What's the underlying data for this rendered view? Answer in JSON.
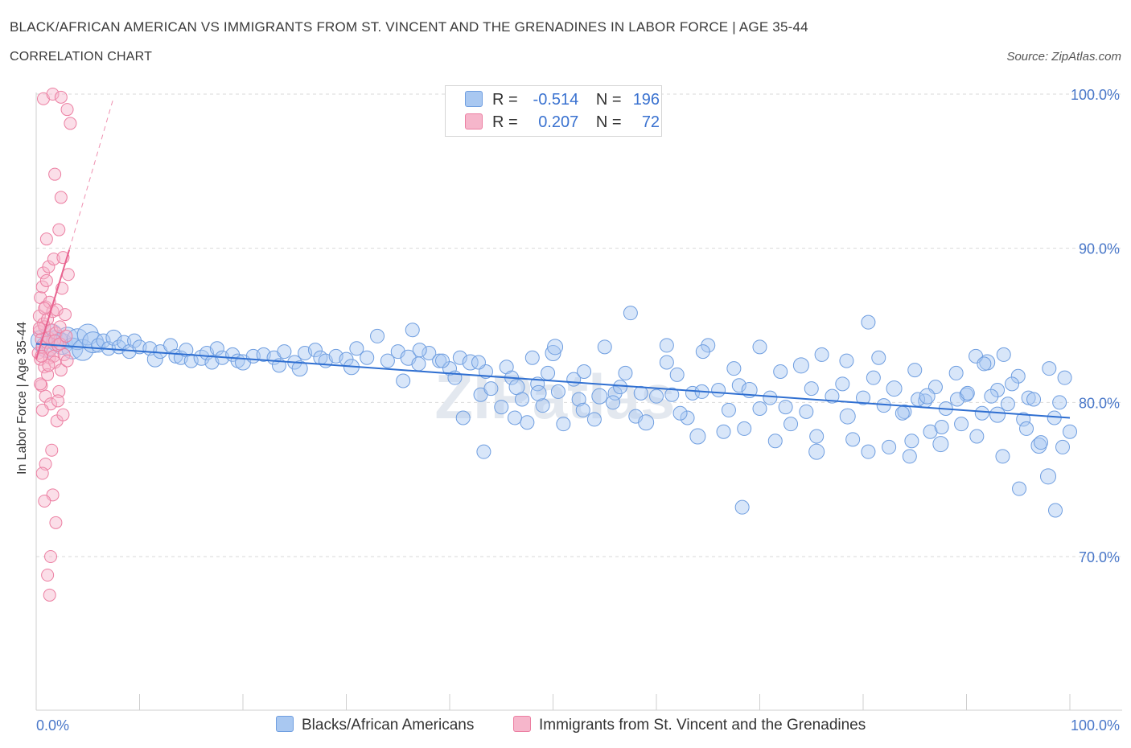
{
  "header": {
    "title": "BLACK/AFRICAN AMERICAN VS IMMIGRANTS FROM ST. VINCENT AND THE GRENADINES IN LABOR FORCE | AGE 35-44",
    "subtitle": "CORRELATION CHART",
    "source": "Source: ZipAtlas.com"
  },
  "legend": {
    "series1": {
      "r_label": "R =",
      "r_value": "-0.514",
      "n_label": "N =",
      "n_value": "196"
    },
    "series2": {
      "r_label": "R =",
      "r_value": "0.207",
      "n_label": "N =",
      "n_value": "72"
    }
  },
  "colors": {
    "blue_fill": "#a9c8f1",
    "blue_stroke": "#6f9ee0",
    "blue_line": "#2f6fd1",
    "pink_fill": "#f6b6cb",
    "pink_stroke": "#ec7fa2",
    "pink_line": "#e8628f",
    "tick_text": "#4a78c9",
    "grid": "#d9d9d9"
  },
  "chart_data": {
    "type": "scatter",
    "title": "BLACK/AFRICAN AMERICAN VS IMMIGRANTS FROM ST. VINCENT AND THE GRENADINES IN LABOR FORCE | AGE 35-44",
    "xlabel": "",
    "ylabel": "In Labor Force | Age 35-44",
    "xlim": [
      0,
      100
    ],
    "ylim": [
      60,
      100
    ],
    "x_tick_labels": [
      "0.0%",
      "100.0%"
    ],
    "y_ticks": [
      70,
      80,
      90,
      100
    ],
    "y_tick_labels": [
      "70.0%",
      "80.0%",
      "90.0%",
      "100.0%"
    ],
    "watermark": "ZIPatlas",
    "series": [
      {
        "name": "Blacks/African Americans",
        "r": -0.514,
        "n": 196,
        "trend": {
          "x": [
            0,
            100
          ],
          "y": [
            83.8,
            79.0
          ]
        },
        "points": [
          [
            0.5,
            84.0
          ],
          [
            1.0,
            83.6
          ],
          [
            1.5,
            84.4
          ],
          [
            2.0,
            84.0
          ],
          [
            2.5,
            83.8
          ],
          [
            3.0,
            84.2
          ],
          [
            3.5,
            83.5
          ],
          [
            4.0,
            84.1
          ],
          [
            4.5,
            83.4
          ],
          [
            5.0,
            84.4
          ],
          [
            5.5,
            83.9
          ],
          [
            6.0,
            83.7
          ],
          [
            6.5,
            84.0
          ],
          [
            7.0,
            83.5
          ],
          [
            7.5,
            84.2
          ],
          [
            8.0,
            83.6
          ],
          [
            8.5,
            83.9
          ],
          [
            9.0,
            83.3
          ],
          [
            9.5,
            84.0
          ],
          [
            10.0,
            83.6
          ],
          [
            11.0,
            83.5
          ],
          [
            11.5,
            82.8
          ],
          [
            12.0,
            83.3
          ],
          [
            13.0,
            83.7
          ],
          [
            13.5,
            83.0
          ],
          [
            14.0,
            82.9
          ],
          [
            14.5,
            83.4
          ],
          [
            15.0,
            82.7
          ],
          [
            16.0,
            82.9
          ],
          [
            16.5,
            83.2
          ],
          [
            17.0,
            82.6
          ],
          [
            17.5,
            83.5
          ],
          [
            18.0,
            82.9
          ],
          [
            19.0,
            83.1
          ],
          [
            19.5,
            82.7
          ],
          [
            20.0,
            82.6
          ],
          [
            21.0,
            83.0
          ],
          [
            22.0,
            83.1
          ],
          [
            23.0,
            82.9
          ],
          [
            23.5,
            82.4
          ],
          [
            24.0,
            83.3
          ],
          [
            25.0,
            82.6
          ],
          [
            25.5,
            82.2
          ],
          [
            26.0,
            83.2
          ],
          [
            27.0,
            83.4
          ],
          [
            27.5,
            82.9
          ],
          [
            28.0,
            82.7
          ],
          [
            29.0,
            83.0
          ],
          [
            30.0,
            82.8
          ],
          [
            30.5,
            82.3
          ],
          [
            31.0,
            83.5
          ],
          [
            32.0,
            82.9
          ],
          [
            33.0,
            84.3
          ],
          [
            34.0,
            82.7
          ],
          [
            35.0,
            83.3
          ],
          [
            35.5,
            81.4
          ],
          [
            36.0,
            82.9
          ],
          [
            37.0,
            82.5
          ],
          [
            38.0,
            83.2
          ],
          [
            39.0,
            82.7
          ],
          [
            40.0,
            82.2
          ],
          [
            40.5,
            81.6
          ],
          [
            41.0,
            82.9
          ],
          [
            42.0,
            82.6
          ],
          [
            43.0,
            80.5
          ],
          [
            43.5,
            82.0
          ],
          [
            44.0,
            80.9
          ],
          [
            45.0,
            79.7
          ],
          [
            45.5,
            82.3
          ],
          [
            46.0,
            81.6
          ],
          [
            46.5,
            81.0
          ],
          [
            47.0,
            80.2
          ],
          [
            47.5,
            78.7
          ],
          [
            48.0,
            82.9
          ],
          [
            48.5,
            81.2
          ],
          [
            49.0,
            79.8
          ],
          [
            49.5,
            81.9
          ],
          [
            50.0,
            83.2
          ],
          [
            50.5,
            80.7
          ],
          [
            51.0,
            78.6
          ],
          [
            52.0,
            81.5
          ],
          [
            52.5,
            80.2
          ],
          [
            53.0,
            82.0
          ],
          [
            54.0,
            78.9
          ],
          [
            54.5,
            80.4
          ],
          [
            55.0,
            83.6
          ],
          [
            56.0,
            80.6
          ],
          [
            56.5,
            81.0
          ],
          [
            57.0,
            81.9
          ],
          [
            58.0,
            79.1
          ],
          [
            58.5,
            80.6
          ],
          [
            59.0,
            78.7
          ],
          [
            60.0,
            80.4
          ],
          [
            61.0,
            82.6
          ],
          [
            61.5,
            80.5
          ],
          [
            62.0,
            81.8
          ],
          [
            63.0,
            79.0
          ],
          [
            63.5,
            80.6
          ],
          [
            64.0,
            77.8
          ],
          [
            65.0,
            83.7
          ],
          [
            66.0,
            80.8
          ],
          [
            66.5,
            78.1
          ],
          [
            67.0,
            79.5
          ],
          [
            68.0,
            81.1
          ],
          [
            68.5,
            78.3
          ],
          [
            69.0,
            80.8
          ],
          [
            70.0,
            79.6
          ],
          [
            71.0,
            80.3
          ],
          [
            71.5,
            77.5
          ],
          [
            72.0,
            82.0
          ],
          [
            72.5,
            79.7
          ],
          [
            73.0,
            78.6
          ],
          [
            74.0,
            82.4
          ],
          [
            74.5,
            79.4
          ],
          [
            75.0,
            80.9
          ],
          [
            75.5,
            77.8
          ],
          [
            76.0,
            83.1
          ],
          [
            77.0,
            80.4
          ],
          [
            78.0,
            81.2
          ],
          [
            78.5,
            79.1
          ],
          [
            79.0,
            77.6
          ],
          [
            80.0,
            80.3
          ],
          [
            80.5,
            76.8
          ],
          [
            81.0,
            81.6
          ],
          [
            82.0,
            79.8
          ],
          [
            82.5,
            77.1
          ],
          [
            83.0,
            80.9
          ],
          [
            84.0,
            79.4
          ],
          [
            84.5,
            76.5
          ],
          [
            85.0,
            82.1
          ],
          [
            86.0,
            80.1
          ],
          [
            86.5,
            78.1
          ],
          [
            87.0,
            81.0
          ],
          [
            87.5,
            77.3
          ],
          [
            88.0,
            79.6
          ],
          [
            89.0,
            81.9
          ],
          [
            89.5,
            78.6
          ],
          [
            90.0,
            80.5
          ],
          [
            91.0,
            77.8
          ],
          [
            91.5,
            79.3
          ],
          [
            92.0,
            82.6
          ],
          [
            93.0,
            80.8
          ],
          [
            93.5,
            76.5
          ],
          [
            94.0,
            79.9
          ],
          [
            95.0,
            81.7
          ],
          [
            95.5,
            78.9
          ],
          [
            96.0,
            80.3
          ],
          [
            97.0,
            77.2
          ],
          [
            98.0,
            82.2
          ],
          [
            98.5,
            79.0
          ],
          [
            99.0,
            80.0
          ],
          [
            99.5,
            81.6
          ],
          [
            100.0,
            78.1
          ],
          [
            43.3,
            76.8
          ],
          [
            50.2,
            83.6
          ],
          [
            57.5,
            85.8
          ],
          [
            61.0,
            83.7
          ],
          [
            64.5,
            83.3
          ],
          [
            67.5,
            82.2
          ],
          [
            68.3,
            73.2
          ],
          [
            70.0,
            83.6
          ],
          [
            75.5,
            76.8
          ],
          [
            78.4,
            82.7
          ],
          [
            80.5,
            85.2
          ],
          [
            81.5,
            82.9
          ],
          [
            83.8,
            79.3
          ],
          [
            84.7,
            77.5
          ],
          [
            85.3,
            80.2
          ],
          [
            86.2,
            80.4
          ],
          [
            87.6,
            78.4
          ],
          [
            89.1,
            80.2
          ],
          [
            90.1,
            80.6
          ],
          [
            90.9,
            83.0
          ],
          [
            91.7,
            82.5
          ],
          [
            92.4,
            80.4
          ],
          [
            93.0,
            79.2
          ],
          [
            93.6,
            83.1
          ],
          [
            94.4,
            81.2
          ],
          [
            95.1,
            74.4
          ],
          [
            95.8,
            78.3
          ],
          [
            96.5,
            80.2
          ],
          [
            97.2,
            77.4
          ],
          [
            97.9,
            75.2
          ],
          [
            98.6,
            73.0
          ],
          [
            99.3,
            77.1
          ],
          [
            64.4,
            80.7
          ],
          [
            62.3,
            79.3
          ],
          [
            55.8,
            80.0
          ],
          [
            52.9,
            79.5
          ],
          [
            48.6,
            80.6
          ],
          [
            46.3,
            79.0
          ],
          [
            41.3,
            79.0
          ],
          [
            42.8,
            82.6
          ],
          [
            39.3,
            82.7
          ],
          [
            37.1,
            83.4
          ],
          [
            36.4,
            84.7
          ]
        ]
      },
      {
        "name": "Immigrants from St. Vincent and the Grenadines",
        "r": 0.207,
        "n": 72,
        "trend": {
          "x": [
            0,
            3.2
          ],
          "y": [
            82.8,
            89.9
          ]
        },
        "trend_dashed": {
          "x": [
            3.2,
            7.5
          ],
          "y": [
            89.9,
            99.8
          ]
        },
        "points": [
          [
            0.2,
            83.2
          ],
          [
            0.3,
            84.6
          ],
          [
            0.3,
            85.6
          ],
          [
            0.4,
            82.8
          ],
          [
            0.4,
            86.8
          ],
          [
            0.5,
            84.1
          ],
          [
            0.5,
            81.1
          ],
          [
            0.6,
            87.5
          ],
          [
            0.6,
            83.6
          ],
          [
            0.7,
            85.1
          ],
          [
            0.7,
            88.4
          ],
          [
            0.8,
            82.3
          ],
          [
            0.8,
            84.9
          ],
          [
            0.9,
            86.2
          ],
          [
            0.9,
            80.4
          ],
          [
            1.0,
            83.9
          ],
          [
            1.0,
            90.6
          ],
          [
            1.1,
            85.4
          ],
          [
            1.1,
            81.8
          ],
          [
            1.2,
            84.2
          ],
          [
            1.2,
            88.8
          ],
          [
            1.3,
            82.9
          ],
          [
            1.3,
            86.5
          ],
          [
            1.4,
            83.4
          ],
          [
            1.4,
            79.9
          ],
          [
            1.5,
            84.7
          ],
          [
            1.5,
            76.9
          ],
          [
            1.6,
            85.9
          ],
          [
            1.6,
            74.0
          ],
          [
            1.7,
            83.0
          ],
          [
            1.7,
            89.3
          ],
          [
            1.8,
            82.6
          ],
          [
            1.8,
            94.8
          ],
          [
            1.9,
            84.5
          ],
          [
            1.9,
            72.2
          ],
          [
            2.0,
            86.0
          ],
          [
            2.0,
            78.8
          ],
          [
            2.1,
            83.7
          ],
          [
            2.2,
            91.2
          ],
          [
            2.2,
            80.7
          ],
          [
            2.3,
            84.9
          ],
          [
            2.4,
            82.1
          ],
          [
            2.4,
            93.3
          ],
          [
            2.5,
            87.4
          ],
          [
            2.6,
            89.4
          ],
          [
            2.6,
            79.2
          ],
          [
            2.7,
            83.1
          ],
          [
            2.8,
            85.7
          ],
          [
            3.0,
            82.7
          ],
          [
            3.1,
            88.3
          ],
          [
            0.7,
            99.7
          ],
          [
            1.6,
            100.0
          ],
          [
            2.4,
            99.8
          ],
          [
            3.0,
            99.0
          ],
          [
            3.3,
            98.1
          ],
          [
            1.4,
            70.0
          ],
          [
            1.1,
            68.8
          ],
          [
            1.3,
            67.5
          ],
          [
            0.9,
            76.0
          ],
          [
            0.6,
            75.4
          ],
          [
            0.8,
            73.6
          ],
          [
            1.2,
            82.4
          ],
          [
            0.4,
            81.2
          ],
          [
            1.8,
            84.0
          ],
          [
            2.1,
            80.1
          ],
          [
            2.3,
            83.8
          ],
          [
            2.9,
            84.3
          ],
          [
            0.3,
            84.8
          ],
          [
            0.5,
            83.0
          ],
          [
            0.6,
            79.5
          ],
          [
            0.8,
            86.1
          ],
          [
            1.0,
            87.9
          ]
        ]
      }
    ]
  },
  "bottom_legend": {
    "item1": "Blacks/African Americans",
    "item2": "Immigrants from St. Vincent and the Grenadines"
  }
}
